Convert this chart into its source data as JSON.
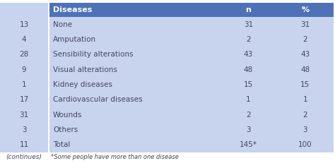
{
  "left_numbers": [
    "13",
    "4",
    "28",
    "9",
    "1",
    "17",
    "31",
    "3",
    "11"
  ],
  "left_continues": "(continues)",
  "header": [
    "Diseases",
    "n",
    "%"
  ],
  "rows": [
    [
      "None",
      "31",
      "31"
    ],
    [
      "Amputation",
      "2",
      "2"
    ],
    [
      "Sensibility alterations",
      "43",
      "43"
    ],
    [
      "Visual alterations",
      "48",
      "48"
    ],
    [
      "Kidney diseases",
      "15",
      "15"
    ],
    [
      "Cardiovascular diseases",
      "1",
      "1"
    ],
    [
      "Wounds",
      "2",
      "2"
    ],
    [
      "Others",
      "3",
      "3"
    ],
    [
      "Total",
      "145*",
      "100"
    ]
  ],
  "footnote": "*Some people have more than one disease",
  "header_bg": "#4d72b8",
  "header_text_color": "#ffffff",
  "left_panel_bg": "#c8d4ee",
  "table_row_bg": "#c8d4ee",
  "text_color": "#444466",
  "footnote_color": "#444444",
  "fig_bg": "#ffffff"
}
